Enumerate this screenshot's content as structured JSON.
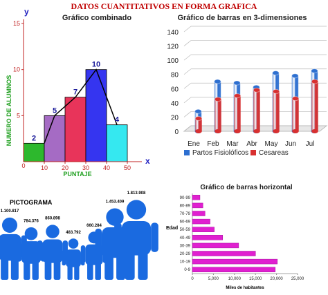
{
  "page": {
    "title": "DATOS CUANTITATIVOS EN FORMA GRAFICA"
  },
  "chart_data": [
    {
      "id": "combinado",
      "type": "bar",
      "title": "Gráfico combinado",
      "xlabel": "PUNTAJE",
      "ylabel": "NUMERO DE ALUMNOS",
      "x_axis_letter": "x",
      "y_axis_letter": "y",
      "origin_label": "0",
      "x_ticks": [
        "10",
        "20",
        "30",
        "40",
        "50"
      ],
      "y_ticks": [
        "5",
        "10",
        "15"
      ],
      "bins": [
        [
          0,
          10
        ],
        [
          10,
          20
        ],
        [
          20,
          30
        ],
        [
          30,
          40
        ],
        [
          40,
          50
        ]
      ],
      "values": [
        2,
        5,
        7,
        10,
        4
      ],
      "colors": [
        "#2db82d",
        "#a56bc4",
        "#e8345a",
        "#3535f0",
        "#35e8f0"
      ],
      "polygon_x": [
        10,
        15,
        25,
        35,
        45
      ],
      "polygon_y": [
        2,
        5,
        7,
        10,
        4
      ],
      "ylim": [
        0,
        15
      ],
      "xlim": [
        0,
        50
      ]
    },
    {
      "id": "barras3d",
      "type": "bar",
      "title": "Gráfico de barras en 3-dimensiones",
      "categories": [
        "Ene",
        "Feb",
        "Mar",
        "Abr",
        "May",
        "Jun",
        "Jul"
      ],
      "y_ticks": [
        "0",
        "20",
        "40",
        "60",
        "80",
        "100",
        "120",
        "140"
      ],
      "ylim": [
        0,
        140
      ],
      "series": [
        {
          "name": "Partos Fisiolóficos",
          "values": [
            28,
            70,
            68,
            62,
            82,
            78,
            85
          ],
          "color": "#2d6fd0"
        },
        {
          "name": "Cesareas",
          "values": [
            18,
            45,
            50,
            58,
            56,
            46,
            70
          ],
          "color": "#d83030"
        }
      ]
    },
    {
      "id": "pictograma",
      "type": "bar",
      "title": "PICTOGRAMA",
      "value_labels": [
        "1.100.817",
        "784.376",
        "860.898",
        "483.792",
        "660.284",
        "1.453.409",
        "1.813.908"
      ],
      "values": [
        1100817,
        784376,
        860898,
        483792,
        660284,
        1453409,
        1813908
      ],
      "icon": "person-icon",
      "color": "#1a6ae0"
    },
    {
      "id": "horizontal",
      "type": "bar",
      "orientation": "horizontal",
      "title": "Gráfico de barras horizontal",
      "ylabel": "Edad",
      "xlabel": "Miles de habitantes",
      "categories": [
        "90-99",
        "80-89",
        "70-79",
        "60-69",
        "50-59",
        "40-49",
        "30-39",
        "20-29",
        "10-19",
        "0-9"
      ],
      "values": [
        1800,
        2500,
        3000,
        4200,
        5200,
        7200,
        11000,
        15000,
        20200,
        19700
      ],
      "x_ticks": [
        "0",
        "5,000",
        "10,000",
        "15,000",
        "20,000",
        "25,000"
      ],
      "xlim": [
        0,
        25000
      ],
      "color": "#e020d0"
    }
  ]
}
